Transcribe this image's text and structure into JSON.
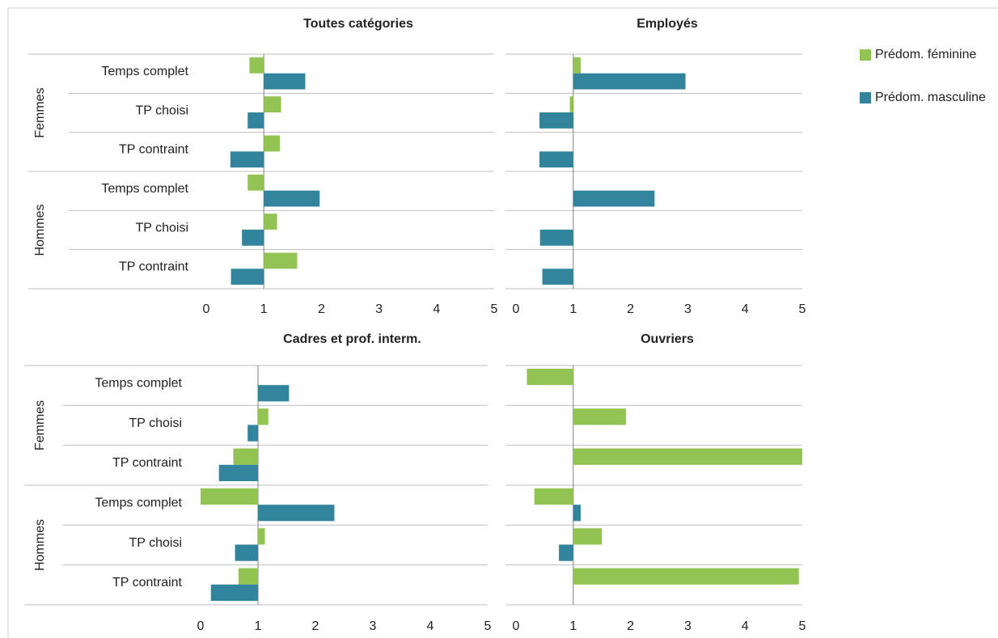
{
  "chart_data": [
    {
      "type": "bar",
      "title": "Toutes catégories",
      "groups": [
        "Femmes",
        "Hommes"
      ],
      "categories": [
        "Temps complet",
        "TP choisi",
        "TP contraint",
        "Temps complet",
        "TP choisi",
        "TP contraint"
      ],
      "series": [
        {
          "name": "Prédom. féminine",
          "color": "#92c353",
          "values": [
            0.75,
            1.3,
            1.28,
            0.72,
            1.23,
            1.58
          ]
        },
        {
          "name": "Prédom. masculine",
          "color": "#31849b",
          "values": [
            1.72,
            0.72,
            0.42,
            1.97,
            0.62,
            0.43
          ]
        }
      ],
      "base": 1,
      "xlim": [
        0,
        5
      ],
      "xticks": [
        0,
        1,
        2,
        3,
        4,
        5
      ],
      "legend": "right"
    },
    {
      "type": "bar",
      "title": "Employés",
      "series": [
        {
          "values": [
            1.13,
            0.94,
            null,
            null,
            null,
            null
          ]
        },
        {
          "values": [
            2.96,
            0.41,
            0.41,
            2.42,
            0.42,
            0.46
          ]
        }
      ],
      "base": 1,
      "xlim": [
        0,
        5
      ],
      "xticks": [
        0,
        1,
        2,
        3,
        4,
        5
      ]
    },
    {
      "type": "bar",
      "title": "Cadres et prof. interm.",
      "groups": [
        "Femmes",
        "Hommes"
      ],
      "categories": [
        "Temps complet",
        "TP choisi",
        "TP contraint",
        "Temps complet",
        "TP choisi",
        "TP contraint"
      ],
      "series": [
        {
          "values": [
            null,
            1.18,
            0.57,
            0,
            1.12,
            0.66
          ]
        },
        {
          "values": [
            1.54,
            0.82,
            0.32,
            2.33,
            0.6,
            0.18
          ]
        }
      ],
      "base": 1,
      "xlim": [
        0,
        5
      ],
      "xticks": [
        0,
        1,
        2,
        3,
        4,
        5
      ]
    },
    {
      "type": "bar",
      "title": "Ouvriers",
      "series": [
        {
          "values": [
            0.19,
            1.92,
            5,
            0.32,
            1.5,
            4.94
          ]
        },
        {
          "values": [
            null,
            null,
            null,
            1.13,
            0.75,
            null
          ]
        }
      ],
      "base": 1,
      "xlim": [
        0,
        5
      ],
      "xticks": [
        0,
        1,
        2,
        3,
        4,
        5
      ]
    }
  ]
}
